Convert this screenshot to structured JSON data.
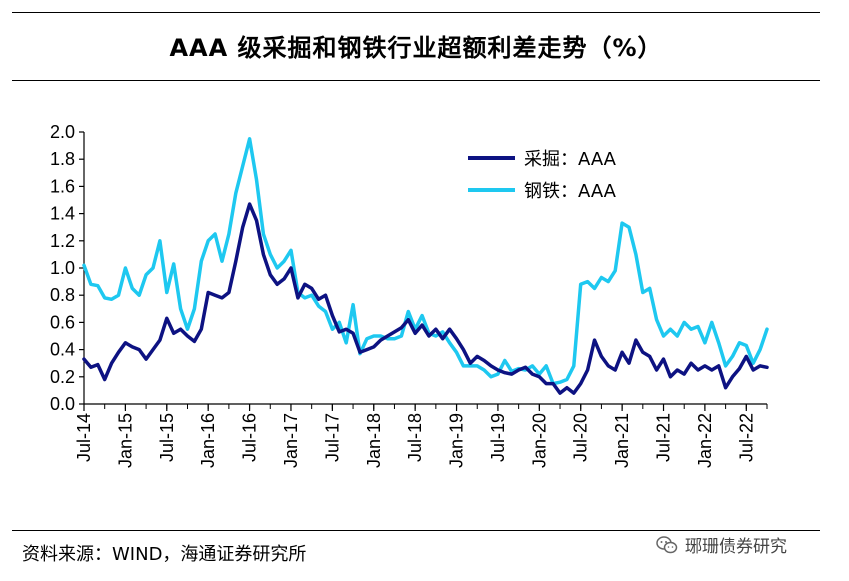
{
  "header": {
    "title": "AAA 级采掘和钢铁行业超额利差走势（%）"
  },
  "footer": {
    "source": "资料来源：WIND，海通证券研究所",
    "watermark": "琊珊债券研究"
  },
  "chart_data": {
    "type": "line",
    "title": "AAA 级采掘和钢铁行业超额利差走势（%）",
    "xlabel": "",
    "ylabel": "",
    "ylim": [
      0,
      2.0
    ],
    "yticks": [
      "0.0",
      "0.2",
      "0.4",
      "0.6",
      "0.8",
      "1.0",
      "1.2",
      "1.4",
      "1.6",
      "1.8",
      "2.0"
    ],
    "xticks": [
      "Jul-14",
      "Jan-15",
      "Jul-15",
      "Jan-16",
      "Jul-16",
      "Jan-17",
      "Jul-17",
      "Jan-18",
      "Jul-18",
      "Jan-19",
      "Jul-19",
      "Jan-20",
      "Jul-20",
      "Jan-21",
      "Jul-21",
      "Jan-22",
      "Jul-22"
    ],
    "xlim_months": [
      0,
      99
    ],
    "legend_position": "top-right",
    "grid": false,
    "series": [
      {
        "name": "采掘：AAA",
        "color": "#0d1282",
        "points": [
          [
            0,
            0.33
          ],
          [
            1,
            0.27
          ],
          [
            2,
            0.29
          ],
          [
            3,
            0.18
          ],
          [
            4,
            0.3
          ],
          [
            5,
            0.38
          ],
          [
            6,
            0.45
          ],
          [
            7,
            0.42
          ],
          [
            8,
            0.4
          ],
          [
            9,
            0.33
          ],
          [
            10,
            0.4
          ],
          [
            11,
            0.47
          ],
          [
            12,
            0.63
          ],
          [
            13,
            0.52
          ],
          [
            14,
            0.55
          ],
          [
            15,
            0.5
          ],
          [
            16,
            0.46
          ],
          [
            17,
            0.55
          ],
          [
            18,
            0.82
          ],
          [
            19,
            0.8
          ],
          [
            20,
            0.78
          ],
          [
            21,
            0.82
          ],
          [
            22,
            1.05
          ],
          [
            23,
            1.3
          ],
          [
            24,
            1.47
          ],
          [
            25,
            1.35
          ],
          [
            26,
            1.1
          ],
          [
            27,
            0.95
          ],
          [
            28,
            0.88
          ],
          [
            29,
            0.92
          ],
          [
            30,
            1.0
          ],
          [
            31,
            0.78
          ],
          [
            32,
            0.88
          ],
          [
            33,
            0.85
          ],
          [
            34,
            0.77
          ],
          [
            35,
            0.8
          ],
          [
            36,
            0.65
          ],
          [
            37,
            0.53
          ],
          [
            38,
            0.55
          ],
          [
            39,
            0.52
          ],
          [
            40,
            0.38
          ],
          [
            41,
            0.4
          ],
          [
            42,
            0.42
          ],
          [
            43,
            0.47
          ],
          [
            44,
            0.5
          ],
          [
            45,
            0.53
          ],
          [
            46,
            0.56
          ],
          [
            47,
            0.62
          ],
          [
            48,
            0.52
          ],
          [
            49,
            0.58
          ],
          [
            50,
            0.5
          ],
          [
            51,
            0.55
          ],
          [
            52,
            0.48
          ],
          [
            53,
            0.55
          ],
          [
            54,
            0.48
          ],
          [
            55,
            0.4
          ],
          [
            56,
            0.3
          ],
          [
            57,
            0.35
          ],
          [
            58,
            0.32
          ],
          [
            59,
            0.28
          ],
          [
            60,
            0.25
          ],
          [
            61,
            0.23
          ],
          [
            62,
            0.22
          ],
          [
            63,
            0.25
          ],
          [
            64,
            0.27
          ],
          [
            65,
            0.22
          ],
          [
            66,
            0.2
          ],
          [
            67,
            0.15
          ],
          [
            68,
            0.15
          ],
          [
            69,
            0.08
          ],
          [
            70,
            0.12
          ],
          [
            71,
            0.08
          ],
          [
            72,
            0.15
          ],
          [
            73,
            0.25
          ],
          [
            74,
            0.47
          ],
          [
            75,
            0.35
          ],
          [
            76,
            0.28
          ],
          [
            77,
            0.25
          ],
          [
            78,
            0.38
          ],
          [
            79,
            0.3
          ],
          [
            80,
            0.47
          ],
          [
            81,
            0.38
          ],
          [
            82,
            0.35
          ],
          [
            83,
            0.25
          ],
          [
            84,
            0.33
          ],
          [
            85,
            0.2
          ],
          [
            86,
            0.25
          ],
          [
            87,
            0.22
          ],
          [
            88,
            0.3
          ],
          [
            89,
            0.25
          ],
          [
            90,
            0.28
          ],
          [
            91,
            0.25
          ],
          [
            92,
            0.28
          ],
          [
            93,
            0.12
          ],
          [
            94,
            0.2
          ],
          [
            95,
            0.26
          ],
          [
            96,
            0.35
          ],
          [
            97,
            0.25
          ],
          [
            98,
            0.28
          ],
          [
            99,
            0.27
          ]
        ]
      },
      {
        "name": "钢铁：AAA",
        "color": "#1ec8f0",
        "points": [
          [
            0,
            1.02
          ],
          [
            1,
            0.88
          ],
          [
            2,
            0.87
          ],
          [
            3,
            0.78
          ],
          [
            4,
            0.77
          ],
          [
            5,
            0.8
          ],
          [
            6,
            1.0
          ],
          [
            7,
            0.85
          ],
          [
            8,
            0.8
          ],
          [
            9,
            0.95
          ],
          [
            10,
            1.0
          ],
          [
            11,
            1.2
          ],
          [
            12,
            0.82
          ],
          [
            13,
            1.03
          ],
          [
            14,
            0.7
          ],
          [
            15,
            0.55
          ],
          [
            16,
            0.7
          ],
          [
            17,
            1.05
          ],
          [
            18,
            1.2
          ],
          [
            19,
            1.25
          ],
          [
            20,
            1.05
          ],
          [
            21,
            1.25
          ],
          [
            22,
            1.55
          ],
          [
            23,
            1.75
          ],
          [
            24,
            1.95
          ],
          [
            25,
            1.65
          ],
          [
            26,
            1.25
          ],
          [
            27,
            1.1
          ],
          [
            28,
            1.0
          ],
          [
            29,
            1.05
          ],
          [
            30,
            1.13
          ],
          [
            31,
            0.82
          ],
          [
            32,
            0.78
          ],
          [
            33,
            0.8
          ],
          [
            34,
            0.72
          ],
          [
            35,
            0.68
          ],
          [
            36,
            0.55
          ],
          [
            37,
            0.6
          ],
          [
            38,
            0.45
          ],
          [
            39,
            0.73
          ],
          [
            40,
            0.37
          ],
          [
            41,
            0.48
          ],
          [
            42,
            0.5
          ],
          [
            43,
            0.5
          ],
          [
            44,
            0.48
          ],
          [
            45,
            0.48
          ],
          [
            46,
            0.5
          ],
          [
            47,
            0.68
          ],
          [
            48,
            0.55
          ],
          [
            49,
            0.65
          ],
          [
            50,
            0.52
          ],
          [
            51,
            0.5
          ],
          [
            52,
            0.53
          ],
          [
            53,
            0.45
          ],
          [
            54,
            0.38
          ],
          [
            55,
            0.28
          ],
          [
            56,
            0.28
          ],
          [
            57,
            0.28
          ],
          [
            58,
            0.25
          ],
          [
            59,
            0.2
          ],
          [
            60,
            0.22
          ],
          [
            61,
            0.32
          ],
          [
            62,
            0.24
          ],
          [
            63,
            0.26
          ],
          [
            64,
            0.25
          ],
          [
            65,
            0.28
          ],
          [
            66,
            0.22
          ],
          [
            67,
            0.28
          ],
          [
            68,
            0.15
          ],
          [
            69,
            0.16
          ],
          [
            70,
            0.18
          ],
          [
            71,
            0.28
          ],
          [
            72,
            0.88
          ],
          [
            73,
            0.9
          ],
          [
            74,
            0.85
          ],
          [
            75,
            0.93
          ],
          [
            76,
            0.9
          ],
          [
            77,
            0.98
          ],
          [
            78,
            1.33
          ],
          [
            79,
            1.3
          ],
          [
            80,
            1.1
          ],
          [
            81,
            0.82
          ],
          [
            82,
            0.85
          ],
          [
            83,
            0.62
          ],
          [
            84,
            0.5
          ],
          [
            85,
            0.55
          ],
          [
            86,
            0.5
          ],
          [
            87,
            0.6
          ],
          [
            88,
            0.55
          ],
          [
            89,
            0.57
          ],
          [
            90,
            0.45
          ],
          [
            91,
            0.6
          ],
          [
            92,
            0.45
          ],
          [
            93,
            0.28
          ],
          [
            94,
            0.35
          ],
          [
            95,
            0.45
          ],
          [
            96,
            0.43
          ],
          [
            97,
            0.3
          ],
          [
            98,
            0.4
          ],
          [
            99,
            0.55
          ]
        ]
      }
    ]
  }
}
